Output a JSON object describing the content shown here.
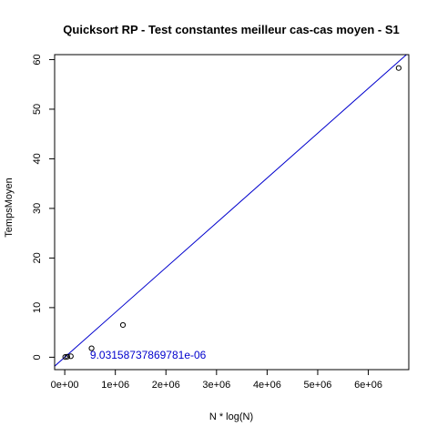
{
  "chart_data": {
    "type": "scatter",
    "title": "Quicksort RP - Test constantes meilleur cas-cas moyen - S1",
    "xlabel": "N * log(N)",
    "ylabel": "TempsMoyen",
    "xlim": [
      -200000,
      6800000
    ],
    "ylim": [
      -2.5,
      61
    ],
    "x_ticks": [
      0,
      1000000,
      2000000,
      3000000,
      4000000,
      5000000,
      6000000
    ],
    "x_tick_labels": [
      "0e+00",
      "1e+06",
      "2e+06",
      "3e+06",
      "4e+06",
      "5e+06",
      "6e+06"
    ],
    "y_ticks": [
      0,
      10,
      20,
      30,
      40,
      50,
      60
    ],
    "y_tick_labels": [
      "0",
      "10",
      "20",
      "30",
      "40",
      "50",
      "60"
    ],
    "points": [
      {
        "x": 10000,
        "y": 0.05
      },
      {
        "x": 50000,
        "y": 0.1
      },
      {
        "x": 120000,
        "y": 0.2
      },
      {
        "x": 530000,
        "y": 1.8
      },
      {
        "x": 1150000,
        "y": 6.5
      },
      {
        "x": 6600000,
        "y": 58.3
      }
    ],
    "fit_line": {
      "slope": 9.03158737869781e-06,
      "intercept": 0,
      "color": "#0000cd"
    },
    "annotation": {
      "text": "9.03158737869781e-06",
      "x": 500000,
      "y": -0.3,
      "color": "#0000cd"
    },
    "grid": false
  }
}
